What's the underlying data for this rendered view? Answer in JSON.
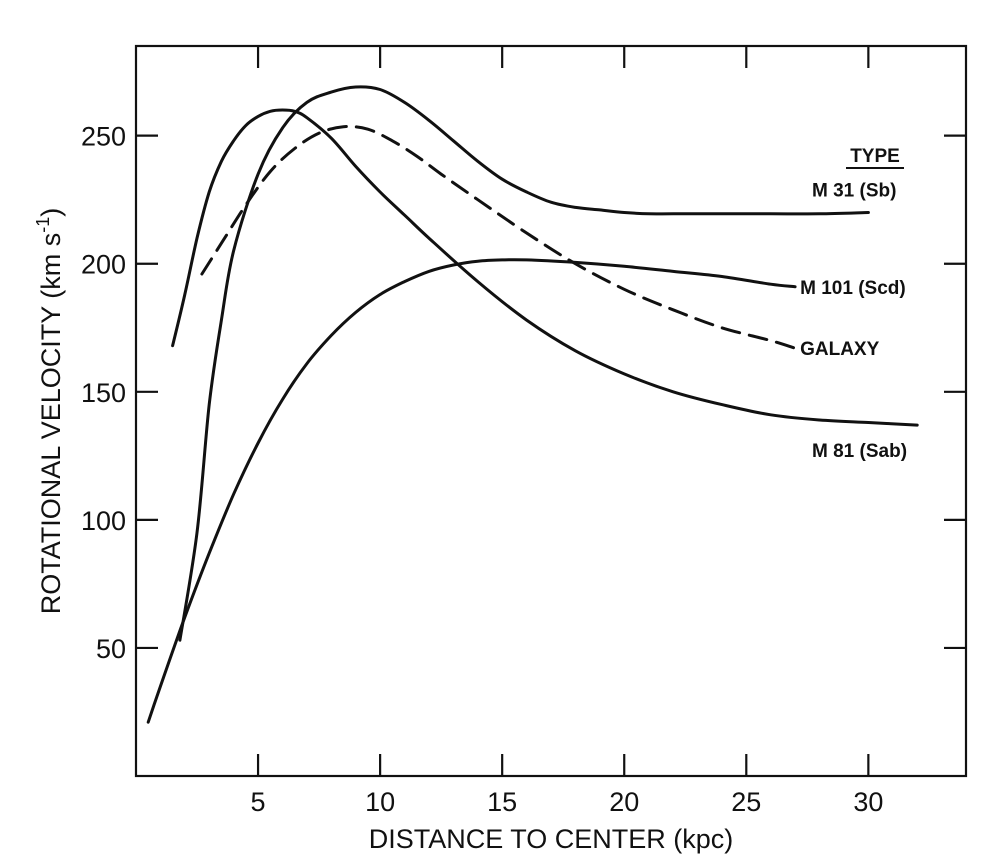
{
  "chart_data": {
    "type": "line",
    "xlabel": "DISTANCE TO CENTER (kpc)",
    "ylabel": "ROTATIONAL VELOCITY (km s",
    "ylabel_sup": "-1",
    "ylabel_end": ")",
    "xlim": [
      0,
      34
    ],
    "ylim": [
      0,
      285
    ],
    "x_ticks": [
      5,
      10,
      15,
      20,
      25,
      30
    ],
    "y_ticks": [
      50,
      100,
      150,
      200,
      250
    ],
    "x_tick_marks": [
      5,
      10,
      15,
      20,
      25,
      30
    ],
    "y_tick_marks": [
      50,
      100,
      150,
      200,
      250
    ],
    "grid": false,
    "legend_title": "TYPE",
    "series": [
      {
        "name": "M 31",
        "type_label": "(Sb)",
        "style": "solid",
        "x": [
          1.8,
          2.5,
          3,
          3.5,
          4,
          5,
          6,
          7,
          8,
          9,
          10,
          11,
          12,
          13,
          14,
          15,
          16,
          17,
          18,
          19,
          20,
          21,
          22,
          24,
          26,
          28,
          30
        ],
        "y": [
          53,
          95,
          145,
          178,
          205,
          235,
          253,
          263,
          267,
          269,
          268,
          263,
          256,
          248,
          240,
          233,
          228,
          224,
          222,
          221,
          220,
          219.5,
          219.5,
          219.5,
          219.5,
          219.5,
          220
        ]
      },
      {
        "name": "M 101",
        "type_label": "(Scd)",
        "style": "solid",
        "x": [
          0.5,
          1,
          2,
          3,
          4,
          5,
          6,
          7,
          8,
          9,
          10,
          11,
          12,
          13,
          14,
          15,
          16,
          18,
          20,
          22,
          24,
          26,
          27
        ],
        "y": [
          21,
          35,
          62,
          87,
          110,
          130,
          147,
          161,
          172,
          181,
          188,
          193,
          197,
          199.5,
          201,
          201.5,
          201.5,
          200.5,
          199,
          197,
          195,
          192,
          191
        ]
      },
      {
        "name": "GALAXY",
        "type_label": "",
        "style": "dashed",
        "x": [
          2.7,
          3.5,
          4.5,
          5.5,
          6.5,
          7.5,
          8.5,
          9.5,
          10.5,
          11.5,
          12.5,
          14,
          16,
          18,
          20,
          22,
          24,
          26,
          27
        ],
        "y": [
          196,
          208,
          223,
          236,
          245,
          251,
          253.5,
          252.5,
          248,
          242,
          235,
          225,
          212,
          200,
          190,
          182,
          175,
          170,
          167
        ]
      },
      {
        "name": "M 81",
        "type_label": "(Sab)",
        "style": "solid",
        "x": [
          1.5,
          2,
          2.5,
          3,
          3.5,
          4,
          4.5,
          5,
          5.5,
          6,
          6.5,
          7,
          8,
          9,
          10,
          11,
          12,
          14,
          16,
          18,
          20,
          22,
          24,
          26,
          28,
          30,
          32
        ],
        "y": [
          168,
          188,
          210,
          228,
          240,
          248,
          254,
          257.5,
          259.5,
          260,
          259.5,
          257,
          249,
          238,
          228,
          219,
          210,
          193,
          178,
          166,
          157,
          150,
          145,
          141,
          139,
          138,
          137
        ]
      }
    ]
  }
}
